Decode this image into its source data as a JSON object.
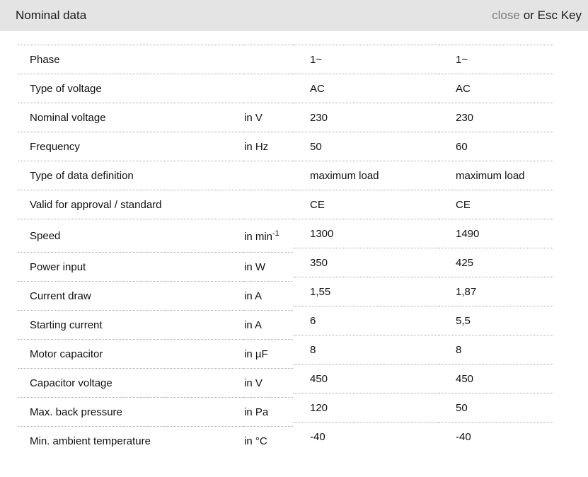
{
  "header": {
    "title": "Nominal data",
    "close_label": "close",
    "close_suffix": "or Esc Key"
  },
  "colors": {
    "header_bg": "#e4e4e4",
    "close_link": "#7e7e7e",
    "text": "#111111",
    "divider": "#a8a8a8"
  },
  "table": {
    "rows": [
      {
        "label": "Phase",
        "unit": "",
        "unit_sup": "",
        "v1": "1~",
        "v2": "1~"
      },
      {
        "label": "Type of voltage",
        "unit": "",
        "unit_sup": "",
        "v1": "AC",
        "v2": "AC"
      },
      {
        "label": "Nominal voltage",
        "unit": "in V",
        "unit_sup": "",
        "v1": "230",
        "v2": "230"
      },
      {
        "label": "Frequency",
        "unit": "in Hz",
        "unit_sup": "",
        "v1": "50",
        "v2": "60"
      },
      {
        "label": "Type of data definition",
        "unit": "",
        "unit_sup": "",
        "v1": "maximum load",
        "v2": "maximum load"
      },
      {
        "label": "Valid for approval / standard",
        "unit": "",
        "unit_sup": "",
        "v1": "CE",
        "v2": "CE"
      },
      {
        "label": "Speed",
        "unit": "in min",
        "unit_sup": "-1",
        "v1": "1300",
        "v2": "1490"
      },
      {
        "label": "Power input",
        "unit": "in W",
        "unit_sup": "",
        "v1": "350",
        "v2": "425"
      },
      {
        "label": "Current draw",
        "unit": "in A",
        "unit_sup": "",
        "v1": "1,55",
        "v2": "1,87"
      },
      {
        "label": "Starting current",
        "unit": "in A",
        "unit_sup": "",
        "v1": "6",
        "v2": "5,5"
      },
      {
        "label": "Motor capacitor",
        "unit": "in µF",
        "unit_sup": "",
        "v1": "8",
        "v2": "8"
      },
      {
        "label": "Capacitor voltage",
        "unit": "in V",
        "unit_sup": "",
        "v1": "450",
        "v2": "450"
      },
      {
        "label": "Max. back pressure",
        "unit": "in Pa",
        "unit_sup": "",
        "v1": "120",
        "v2": "50"
      },
      {
        "label": "Min. ambient temperature",
        "unit": "in °C",
        "unit_sup": "",
        "v1": "-40",
        "v2": "-40"
      }
    ]
  }
}
